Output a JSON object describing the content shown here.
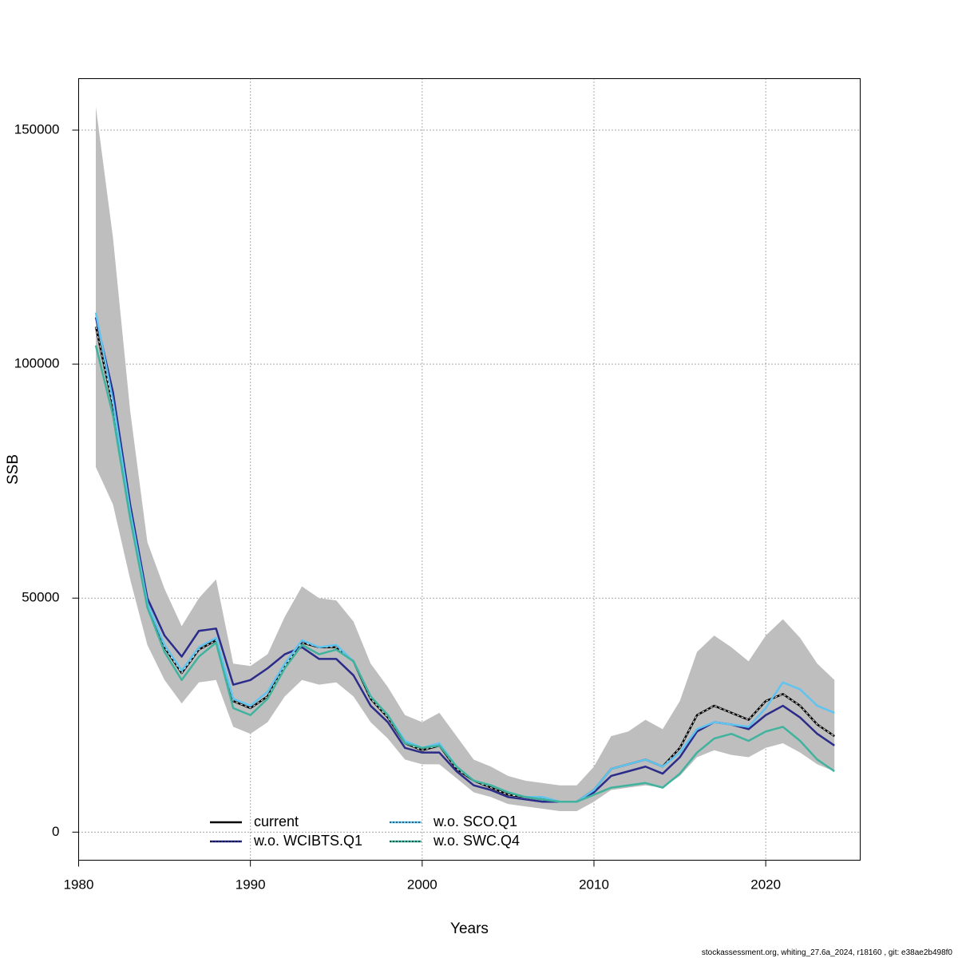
{
  "chart_data": {
    "type": "line",
    "title": "",
    "xlabel": "Years",
    "ylabel": "SSB",
    "xlim": [
      1980,
      2025.5
    ],
    "ylim": [
      -6000,
      161000
    ],
    "x_ticks": [
      1980,
      1990,
      2000,
      2010,
      2020
    ],
    "x_tick_labels": [
      "1980",
      "1990",
      "2000",
      "2010",
      "2020"
    ],
    "y_ticks": [
      0,
      50000,
      100000,
      150000
    ],
    "y_tick_labels": [
      "0",
      "50000",
      "100000",
      "150000"
    ],
    "grid": true,
    "legend_position": "bottom-left",
    "credit": "stockassessment.org, whiting_27.6a_2024, r18160 , git: e38ae2b498f0",
    "colors": {
      "band": "#bebebe",
      "current": "#000000",
      "wcibts": "#2b2b8a",
      "sco": "#5fc4f0",
      "swc": "#3fb39e"
    },
    "x": [
      1981,
      1982,
      1983,
      1984,
      1985,
      1986,
      1987,
      1988,
      1989,
      1990,
      1991,
      1992,
      1993,
      1994,
      1995,
      1996,
      1997,
      1998,
      1999,
      2000,
      2001,
      2002,
      2003,
      2004,
      2005,
      2006,
      2007,
      2008,
      2009,
      2010,
      2011,
      2012,
      2013,
      2014,
      2015,
      2016,
      2017,
      2018,
      2019,
      2020,
      2021,
      2022,
      2023,
      2024
    ],
    "confidence_band": {
      "name": "current 95% CI",
      "upper": [
        155000,
        127000,
        90000,
        62000,
        52000,
        44000,
        50000,
        54000,
        36000,
        35500,
        38000,
        46000,
        52500,
        50000,
        49500,
        45000,
        36000,
        31000,
        25000,
        23500,
        25500,
        20500,
        15500,
        14000,
        12000,
        11000,
        10500,
        10000,
        10000,
        14000,
        20500,
        21500,
        24000,
        22000,
        28000,
        38500,
        42000,
        39500,
        36500,
        42000,
        45500,
        41500,
        36000,
        32500
      ],
      "lower": [
        78000,
        70000,
        54000,
        40000,
        32500,
        27500,
        32000,
        32500,
        22500,
        21000,
        23500,
        29000,
        32500,
        31500,
        32000,
        29000,
        23500,
        20000,
        15500,
        14500,
        14500,
        11500,
        8500,
        7500,
        6000,
        5500,
        5000,
        4500,
        4500,
        6500,
        9000,
        9500,
        10000,
        9500,
        12000,
        16000,
        17500,
        16500,
        16000,
        18000,
        19000,
        17000,
        14500,
        13000
      ]
    },
    "series": [
      {
        "name": "current",
        "values": [
          108000,
          91000,
          68000,
          49000,
          39500,
          34000,
          39000,
          41000,
          28000,
          26500,
          29000,
          35500,
          40500,
          39500,
          39500,
          36500,
          28500,
          24500,
          19000,
          17500,
          18500,
          13500,
          11000,
          9500,
          8000,
          7500,
          7000,
          6500,
          6500,
          9000,
          13500,
          14500,
          15500,
          14000,
          18000,
          25000,
          27000,
          25500,
          24000,
          28000,
          29500,
          27000,
          23000,
          20500
        ]
      },
      {
        "name": "w.o. WCIBTS.Q1",
        "values": [
          110000,
          94000,
          70000,
          50000,
          42000,
          37500,
          43000,
          43500,
          31500,
          32500,
          35000,
          38000,
          39500,
          37000,
          37000,
          33500,
          27000,
          23500,
          18000,
          17000,
          17000,
          13000,
          10000,
          9000,
          7500,
          7000,
          6500,
          6500,
          6500,
          8500,
          12000,
          13000,
          14000,
          12500,
          16000,
          21500,
          23500,
          23000,
          22000,
          25000,
          27000,
          24500,
          21000,
          18500
        ]
      },
      {
        "name": "w.o. SCO.Q1",
        "values": [
          111000,
          92000,
          68500,
          49000,
          40000,
          34500,
          39500,
          41500,
          28500,
          27000,
          30000,
          36000,
          41000,
          39500,
          40000,
          36500,
          29000,
          25000,
          19500,
          18000,
          19000,
          14000,
          11000,
          10000,
          8500,
          7500,
          7500,
          6500,
          6500,
          9000,
          13500,
          14500,
          15500,
          14000,
          17000,
          22000,
          23500,
          23000,
          22500,
          26500,
          32000,
          30500,
          27000,
          25500
        ]
      },
      {
        "name": "w.o. SWC.Q4",
        "values": [
          104000,
          89000,
          67000,
          48000,
          38500,
          32500,
          37500,
          40500,
          26500,
          25000,
          28500,
          35000,
          40000,
          38000,
          39000,
          36500,
          29000,
          25000,
          19000,
          18000,
          18500,
          14000,
          11000,
          10000,
          8500,
          7500,
          7000,
          6500,
          6500,
          8000,
          9500,
          10000,
          10500,
          9500,
          12500,
          17000,
          20000,
          21000,
          19500,
          21500,
          22500,
          19500,
          15500,
          13000
        ]
      }
    ]
  }
}
